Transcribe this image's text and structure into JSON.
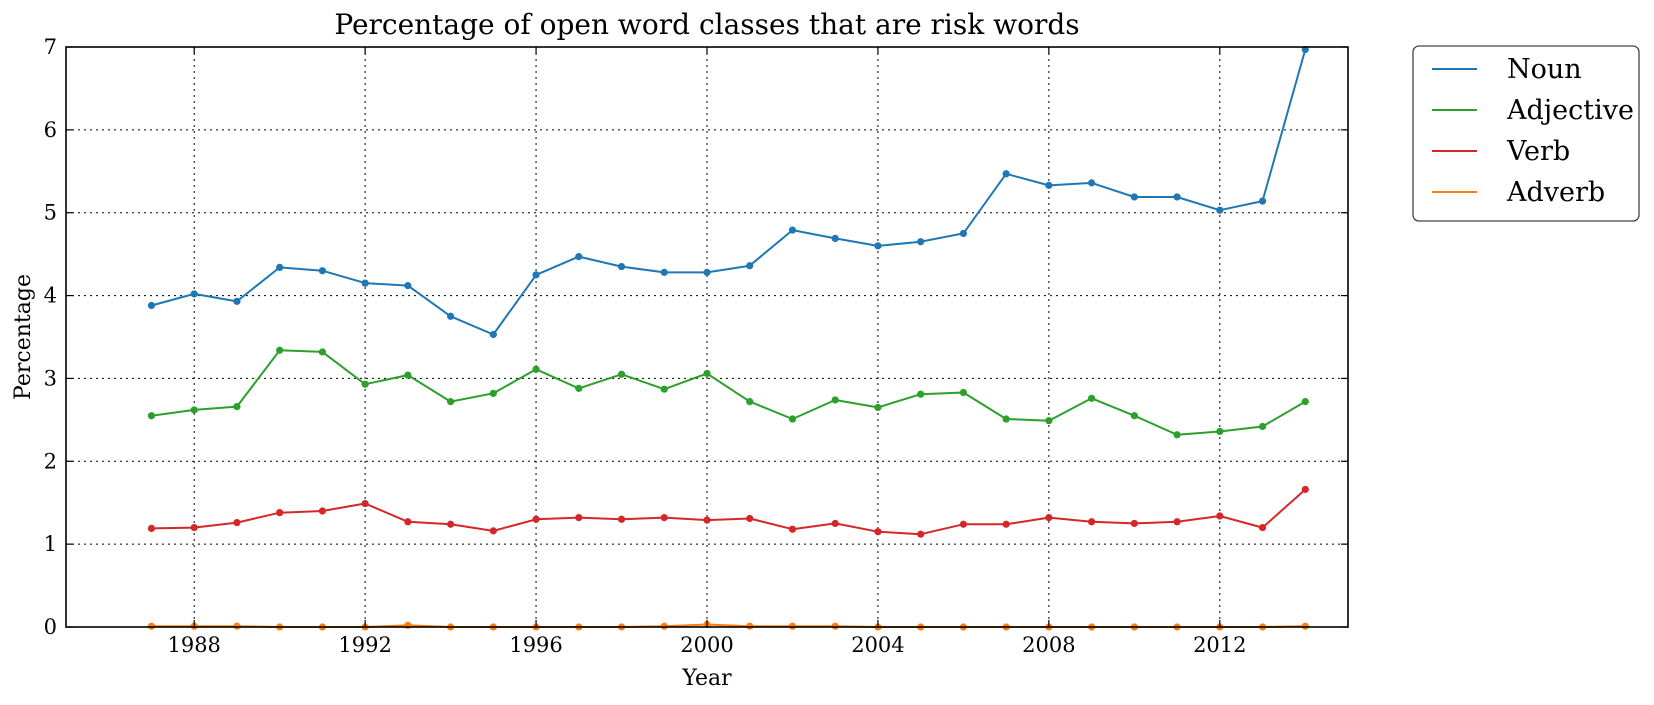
{
  "chart_data": {
    "type": "line",
    "title": "Percentage of open word classes that are risk words",
    "xlabel": "Year",
    "ylabel": "Percentage",
    "xlim": [
      1985,
      2015
    ],
    "ylim": [
      0,
      7
    ],
    "x_ticks": [
      1988,
      1992,
      1996,
      2000,
      2004,
      2008,
      2012
    ],
    "y_ticks": [
      0,
      1,
      2,
      3,
      4,
      5,
      6,
      7
    ],
    "grid": true,
    "legend_position": "outside-top-right",
    "x": [
      1987,
      1988,
      1989,
      1990,
      1991,
      1992,
      1993,
      1994,
      1995,
      1996,
      1997,
      1998,
      1999,
      2000,
      2001,
      2002,
      2003,
      2004,
      2005,
      2006,
      2007,
      2008,
      2009,
      2010,
      2011,
      2012,
      2013,
      2014
    ],
    "series": [
      {
        "name": "Noun",
        "color": "#1f77b4",
        "values": [
          3.88,
          4.02,
          3.93,
          4.34,
          4.3,
          4.15,
          4.12,
          3.75,
          3.53,
          4.25,
          4.47,
          4.35,
          4.28,
          4.28,
          4.36,
          4.79,
          4.69,
          4.6,
          4.65,
          4.75,
          5.47,
          5.33,
          5.36,
          5.19,
          5.19,
          5.03,
          5.14,
          6.97
        ]
      },
      {
        "name": "Adjective",
        "color": "#2ca02c",
        "values": [
          2.55,
          2.62,
          2.66,
          3.34,
          3.32,
          2.93,
          3.04,
          2.72,
          2.82,
          3.11,
          2.88,
          3.05,
          2.87,
          3.06,
          2.72,
          2.51,
          2.74,
          2.65,
          2.81,
          2.83,
          2.51,
          2.49,
          2.76,
          2.55,
          2.32,
          2.36,
          2.42,
          2.72
        ]
      },
      {
        "name": "Verb",
        "color": "#d62728",
        "values": [
          1.19,
          1.2,
          1.26,
          1.38,
          1.4,
          1.49,
          1.27,
          1.24,
          1.16,
          1.3,
          1.32,
          1.3,
          1.32,
          1.29,
          1.31,
          1.18,
          1.25,
          1.15,
          1.12,
          1.24,
          1.24,
          1.32,
          1.27,
          1.25,
          1.27,
          1.34,
          1.2,
          1.66
        ]
      },
      {
        "name": "Adverb",
        "color": "#ff7f0e",
        "values": [
          0.01,
          0.01,
          0.01,
          0.0,
          0.0,
          0.0,
          0.02,
          0.0,
          0.0,
          0.0,
          0.0,
          0.0,
          0.01,
          0.03,
          0.01,
          0.01,
          0.01,
          0.0,
          0.0,
          0.0,
          0.0,
          0.0,
          0.0,
          0.0,
          0.0,
          0.0,
          0.0,
          0.01
        ]
      }
    ]
  }
}
